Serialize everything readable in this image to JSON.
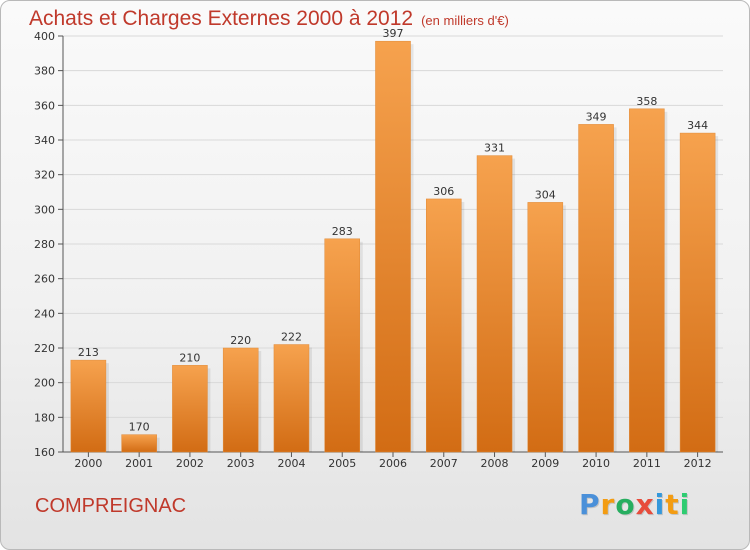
{
  "title": "Achats et Charges Externes 2000 à 2012",
  "subtitle": "(en milliers d'€)",
  "commune": "COMPREIGNAC",
  "brand": {
    "letters": [
      "P",
      "r",
      "o",
      "x",
      "i",
      "t",
      "i"
    ],
    "colors": [
      "#4a90d9",
      "#f39c12",
      "#27ae60",
      "#e74c3c",
      "#3498db",
      "#f39c12",
      "#2ecc71"
    ]
  },
  "colors": {
    "bar_top": "#f6a24e",
    "bar_bottom": "#d26c14",
    "title": "#c0392b"
  },
  "chart_data": {
    "type": "bar",
    "categories": [
      "2000",
      "2001",
      "2002",
      "2003",
      "2004",
      "2005",
      "2006",
      "2007",
      "2008",
      "2009",
      "2010",
      "2011",
      "2012"
    ],
    "values": [
      213,
      170,
      210,
      220,
      222,
      283,
      397,
      306,
      331,
      304,
      349,
      358,
      344
    ],
    "ylim": [
      160,
      400
    ],
    "yticks": [
      160,
      180,
      200,
      220,
      240,
      260,
      280,
      300,
      320,
      340,
      360,
      380,
      400
    ],
    "grid": true,
    "xlabel": "",
    "ylabel": ""
  }
}
